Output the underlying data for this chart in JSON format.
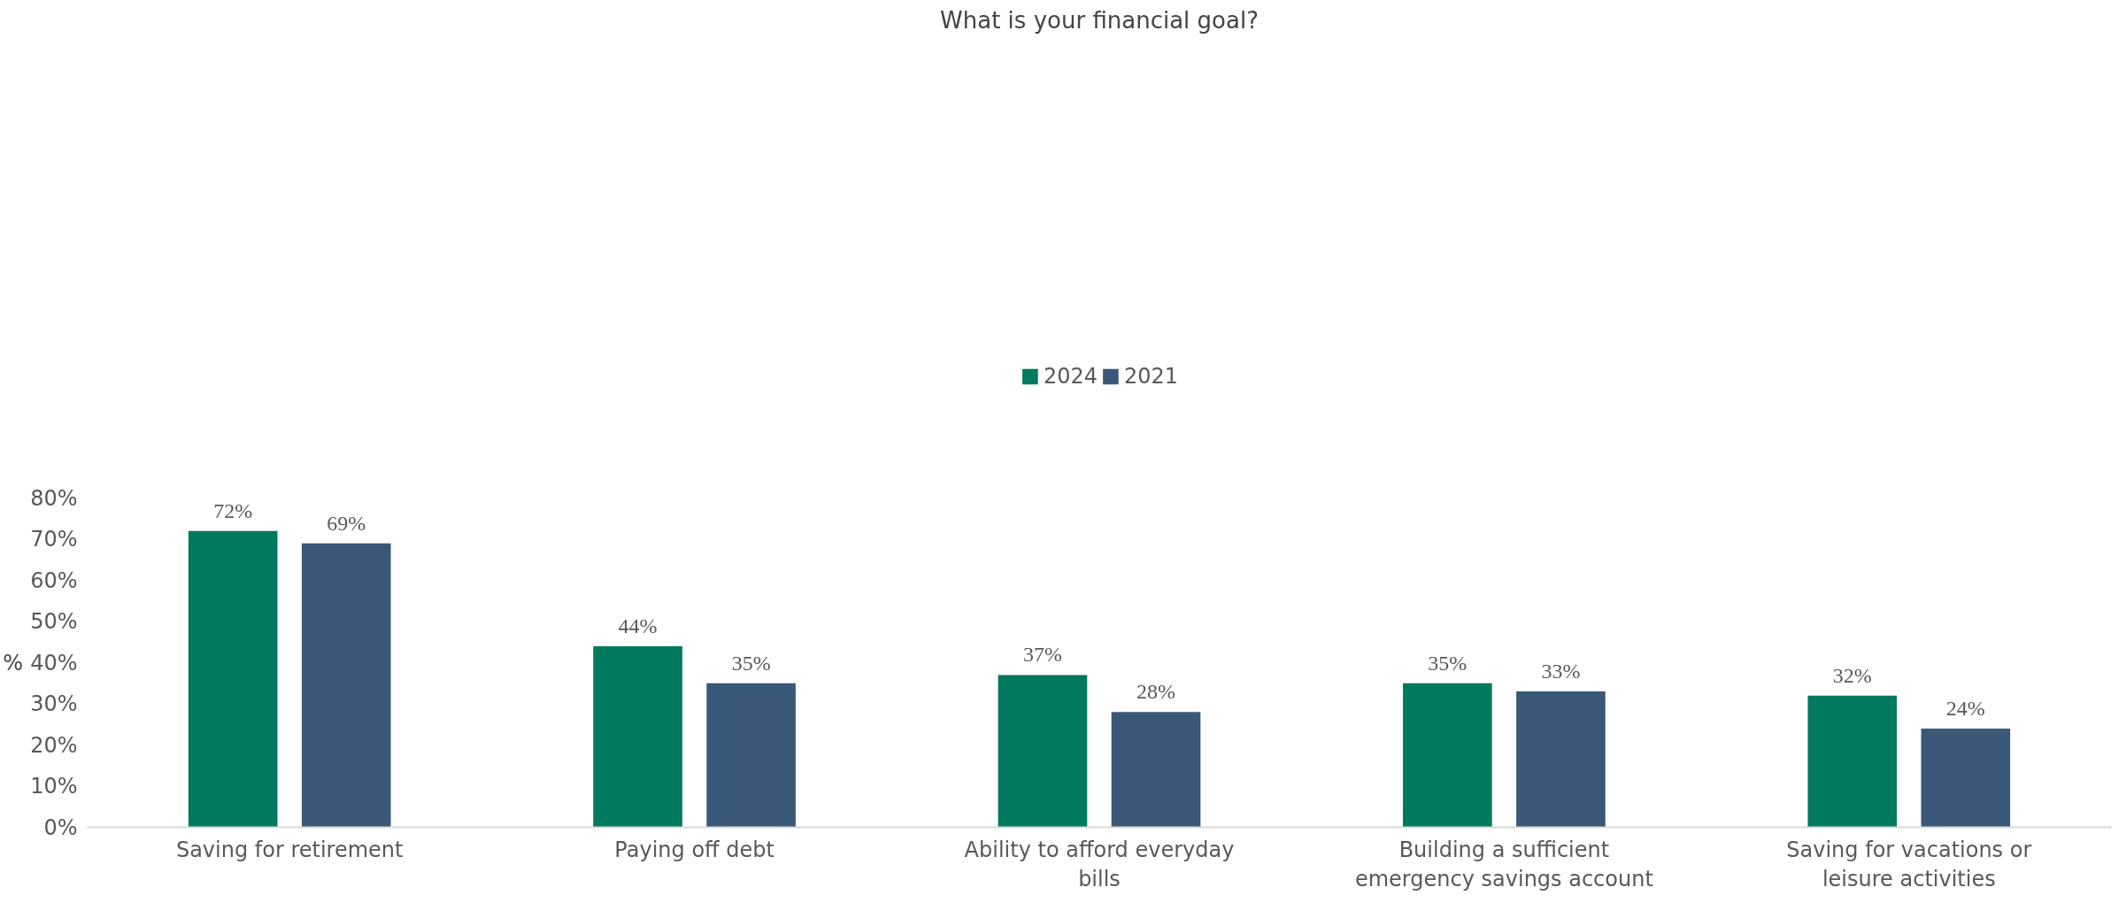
{
  "chart_data": {
    "type": "bar",
    "title": "What is your financial goal?",
    "ylabel": "%",
    "categories": [
      "Saving for retirement",
      "Paying off debt",
      "Ability to afford everyday bills",
      "Building a sufficient emergency savings account",
      "Saving for vacations or leisure activities"
    ],
    "series": [
      {
        "name": "2024",
        "color": "#007a5e",
        "values": [
          72,
          44,
          37,
          35,
          32
        ],
        "value_labels": [
          "72%",
          "44%",
          "37%",
          "35%",
          "32%"
        ]
      },
      {
        "name": "2021",
        "color": "#3a5877",
        "values": [
          69,
          35,
          28,
          33,
          24
        ],
        "value_labels": [
          "69%",
          "35%",
          "28%",
          "33%",
          "24%"
        ]
      }
    ],
    "ylim": [
      0,
      80
    ],
    "yticks": [
      {
        "value": 0,
        "label": "0%"
      },
      {
        "value": 10,
        "label": "10%"
      },
      {
        "value": 20,
        "label": "20%"
      },
      {
        "value": 30,
        "label": "30%"
      },
      {
        "value": 40,
        "label": "40%"
      },
      {
        "value": 50,
        "label": "50%"
      },
      {
        "value": 60,
        "label": "60%"
      },
      {
        "value": 70,
        "label": "70%"
      },
      {
        "value": 80,
        "label": "80%"
      }
    ],
    "grid": false,
    "legend": "top"
  }
}
